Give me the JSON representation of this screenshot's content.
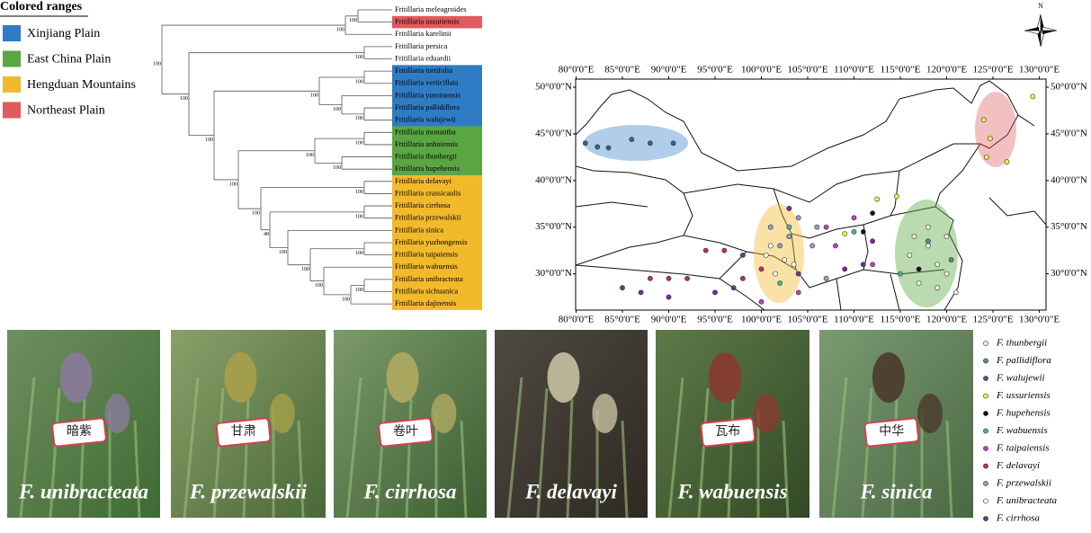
{
  "legend": {
    "title": "Colored ranges",
    "items": [
      {
        "label": "Xinjiang Plain",
        "color": "#2f7cc4"
      },
      {
        "label": "East China Plain",
        "color": "#5aa642"
      },
      {
        "label": "Hengduan Mountains",
        "color": "#f2b92a"
      },
      {
        "label": "Northeast Plain",
        "color": "#e05a5e"
      }
    ]
  },
  "tree": {
    "leaves": [
      "Fritillaria meleagroides",
      "Fritillaria ussuriensis",
      "Fritillaria karelinii",
      "Fritillaria persica",
      "Fritillaria eduardii",
      "Fritillaria tortifolia",
      "Fritillaria verticillata",
      "Fritillaria yuminensis",
      "Fritillaria pallidiflora",
      "Fritillaria walujewii",
      "Fritillaria monantha",
      "Fritillaria anhuiensis",
      "Fritillaria thunbergii",
      "Fritillaria hupehensis",
      "Fritillaria delavayi",
      "Fritillaria crassicaulis",
      "Fritillaria cirrhosa",
      "Fritillaria przewalskii",
      "Fritillaria sinica",
      "Fritillaria yuzhongensis",
      "Fritillaria taipaiensis",
      "Fritillaria wabuensis",
      "Fritillaria unibracteata",
      "Fritillaria sichuanica",
      "Fritillaria dajinensis"
    ],
    "supports": [
      "100",
      "100",
      "100",
      "100",
      "100",
      "100",
      "100",
      "100",
      "100",
      "100",
      "100",
      "100",
      "100",
      "100",
      "100",
      "100",
      "100",
      "100",
      "48",
      "100",
      "100",
      "100",
      "100",
      "100"
    ]
  },
  "map": {
    "north": "N",
    "lon_ticks": [
      {
        "value": 80,
        "label": "80°0'0\"E"
      },
      {
        "value": 85,
        "label": "85°0'0\"E"
      },
      {
        "value": 90,
        "label": "90°0'0\"E"
      },
      {
        "value": 95,
        "label": "95°0'0\"E"
      },
      {
        "value": 100,
        "label": "100°0'0\"E"
      },
      {
        "value": 105,
        "label": "105°0'0\"E"
      },
      {
        "value": 110,
        "label": "110°0'0\"E"
      },
      {
        "value": 115,
        "label": "115°0'0\"E"
      },
      {
        "value": 120,
        "label": "120°0'0\"E"
      },
      {
        "value": 125,
        "label": "125°0'0\"E"
      },
      {
        "value": 130,
        "label": "130°0'0\"E"
      }
    ],
    "lat_ticks": [
      {
        "value": 50,
        "label": "50°0'0\"N"
      },
      {
        "value": 45,
        "label": "45°0'0\"N"
      },
      {
        "value": 40,
        "label": "40°0'0\"N"
      },
      {
        "value": 35,
        "label": "35°0'0\"N"
      },
      {
        "value": 30,
        "label": "30°0'0\"N"
      }
    ],
    "species": [
      {
        "name": "F. thunbergii",
        "color": "#eef3dc",
        "points": [
          [
            116,
            32
          ],
          [
            118,
            33
          ],
          [
            119,
            31
          ],
          [
            120,
            30
          ],
          [
            117,
            29
          ],
          [
            118,
            35
          ],
          [
            116.5,
            34
          ],
          [
            120,
            34
          ],
          [
            119,
            28.5
          ],
          [
            121,
            28
          ]
        ]
      },
      {
        "name": "F. pallidiflora",
        "color": "#5f8a85",
        "points": [
          [
            118,
            33.5
          ],
          [
            120.5,
            31.5
          ]
        ]
      },
      {
        "name": "F. walujewii",
        "color": "#3e5c9a",
        "points": [
          [
            81,
            44
          ],
          [
            82.3,
            43.6
          ],
          [
            83.5,
            43.5
          ],
          [
            86,
            44.4
          ],
          [
            88,
            44
          ],
          [
            90.5,
            44
          ]
        ]
      },
      {
        "name": "F. ussuriensis",
        "color": "#f2f24a",
        "points": [
          [
            124,
            46.5
          ],
          [
            124.7,
            44.5
          ],
          [
            124.3,
            42.5
          ],
          [
            126.5,
            42
          ],
          [
            129.3,
            49
          ],
          [
            112.5,
            38
          ],
          [
            114.6,
            38.3
          ],
          [
            109,
            34.3
          ]
        ]
      },
      {
        "name": "F. hupehensis",
        "color": "#111111",
        "points": [
          [
            111,
            34.5
          ],
          [
            117,
            30.5
          ],
          [
            112,
            36.5
          ]
        ]
      },
      {
        "name": "F. wabuensis",
        "color": "#3fb8a0",
        "points": [
          [
            110,
            34.5
          ],
          [
            103,
            35
          ],
          [
            102,
            29
          ],
          [
            115,
            30
          ]
        ]
      },
      {
        "name": "F. taipaiensis",
        "color": "#c03ec0",
        "points": [
          [
            108,
            33
          ],
          [
            107,
            35
          ],
          [
            110,
            36
          ],
          [
            112,
            31
          ],
          [
            104,
            28
          ],
          [
            100,
            27
          ]
        ]
      },
      {
        "name": "F. delavayi",
        "color": "#c0304a",
        "points": [
          [
            94,
            32.5
          ],
          [
            96,
            32.5
          ],
          [
            98,
            29.5
          ],
          [
            90,
            29.5
          ],
          [
            88,
            29.5
          ],
          [
            92,
            29.5
          ],
          [
            100,
            30.5
          ]
        ]
      },
      {
        "name": "F. przewalskii",
        "color": "#8fa0d0",
        "points": [
          [
            101,
            35
          ],
          [
            102,
            33
          ],
          [
            104,
            36
          ],
          [
            106,
            35
          ],
          [
            103,
            34
          ],
          [
            105.5,
            33
          ],
          [
            107,
            29.5
          ]
        ]
      },
      {
        "name": "F. unibracteata",
        "color": "#ffffff",
        "points": [
          [
            101,
            33
          ],
          [
            102.5,
            31.5
          ],
          [
            101.5,
            30
          ],
          [
            103.5,
            31
          ],
          [
            100.5,
            32
          ]
        ]
      },
      {
        "name": "F. cirrhosa",
        "color": "#7a2a9a",
        "points": [
          [
            85,
            28.5
          ],
          [
            87,
            28
          ],
          [
            90,
            27.5
          ],
          [
            95,
            28
          ],
          [
            97,
            28.5
          ],
          [
            98,
            32
          ],
          [
            103,
            37
          ],
          [
            104,
            30
          ],
          [
            109,
            30.5
          ],
          [
            112,
            33.5
          ],
          [
            111,
            31
          ]
        ]
      }
    ]
  },
  "photos": [
    {
      "caption": "F. unibracteata",
      "tag": "暗紫"
    },
    {
      "caption": "F. przewalskii",
      "tag": "甘肃"
    },
    {
      "caption": "F. cirrhosa",
      "tag": "卷叶"
    },
    {
      "caption": "F. delavayi"
    },
    {
      "caption": "F. wabuensis",
      "tag": "瓦布"
    },
    {
      "caption": "F. sinica",
      "tag": "中华"
    }
  ]
}
